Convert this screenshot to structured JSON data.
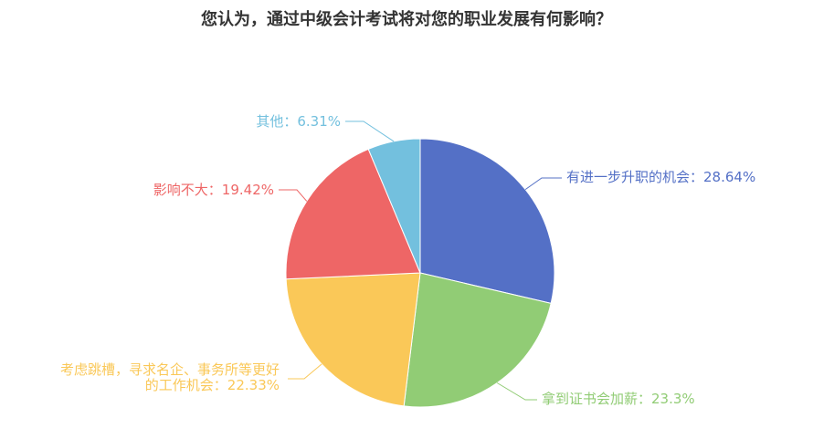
{
  "chart_data": {
    "type": "pie",
    "title": "您认为，通过中级会计考试将对您的职业发展有何影响？",
    "slices": [
      {
        "label": "有进一步升职的机会",
        "value": 28.64,
        "display": "28.64%",
        "color": "#5470c6"
      },
      {
        "label": "拿到证书会加薪",
        "value": 23.3,
        "display": "23.3%",
        "color": "#91cc75"
      },
      {
        "label": "考虑跳槽，寻求名企、事务所等更好的工作机会",
        "label_lines": [
          "考虑跳槽，寻求名企、事务所等更好",
          "的工作机会：22.33%"
        ],
        "value": 22.33,
        "display": "22.33%",
        "color": "#fac858"
      },
      {
        "label": "影响不大",
        "value": 19.42,
        "display": "19.42%",
        "color": "#ee6666"
      },
      {
        "label": "其他",
        "value": 6.31,
        "display": "6.31%",
        "color": "#73c0de"
      }
    ],
    "label_separator": "："
  }
}
